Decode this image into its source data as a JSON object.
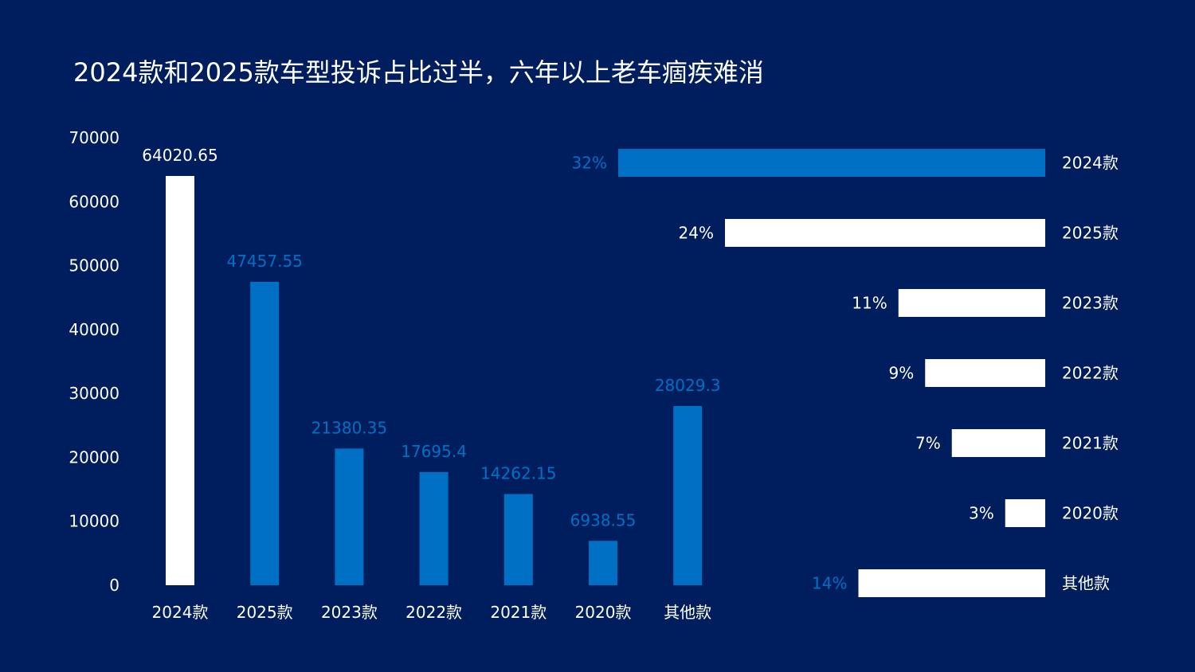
{
  "title": "2024款和2025款车型投诉占比过半，六年以上老车痼疾难消",
  "colors": {
    "background": "#001e5e",
    "blue": "#0070c5",
    "white": "#ffffff"
  },
  "chart_data": [
    {
      "type": "bar",
      "orientation": "vertical",
      "categories": [
        "2024款",
        "2025款",
        "2023款",
        "2022款",
        "2021款",
        "2020款",
        "其他款"
      ],
      "values": [
        64020.65,
        47457.55,
        21380.35,
        17695.4,
        14262.15,
        6938.55,
        28029.3
      ],
      "value_labels": [
        "64020.65",
        "47457.55",
        "21380.35",
        "17695.4",
        "14262.15",
        "6938.55",
        "28029.3"
      ],
      "bar_colors": [
        "#ffffff",
        "#0070c5",
        "#0070c5",
        "#0070c5",
        "#0070c5",
        "#0070c5",
        "#0070c5"
      ],
      "label_colors": [
        "#ffffff",
        "#0070c5",
        "#0070c5",
        "#0070c5",
        "#0070c5",
        "#0070c5",
        "#0070c5"
      ],
      "ylim": [
        0,
        70000
      ],
      "yticks": [
        "0",
        "10000",
        "20000",
        "30000",
        "40000",
        "50000",
        "60000",
        "70000"
      ],
      "xlabel": "",
      "ylabel": "",
      "grid": false
    },
    {
      "type": "bar",
      "orientation": "horizontal",
      "categories": [
        "2024款",
        "2025款",
        "2023款",
        "2022款",
        "2021款",
        "2020款",
        "其他款"
      ],
      "values": [
        32,
        24,
        11,
        9,
        7,
        3,
        14
      ],
      "value_labels": [
        "32%",
        "24%",
        "11%",
        "9%",
        "7%",
        "3%",
        "14%"
      ],
      "bar_colors": [
        "#0070c5",
        "#ffffff",
        "#ffffff",
        "#ffffff",
        "#ffffff",
        "#ffffff",
        "#ffffff"
      ],
      "label_colors": [
        "#0070c5",
        "#ffffff",
        "#ffffff",
        "#ffffff",
        "#ffffff",
        "#ffffff",
        "#0070c5"
      ],
      "xlim": [
        0,
        32
      ],
      "grid": false
    }
  ]
}
